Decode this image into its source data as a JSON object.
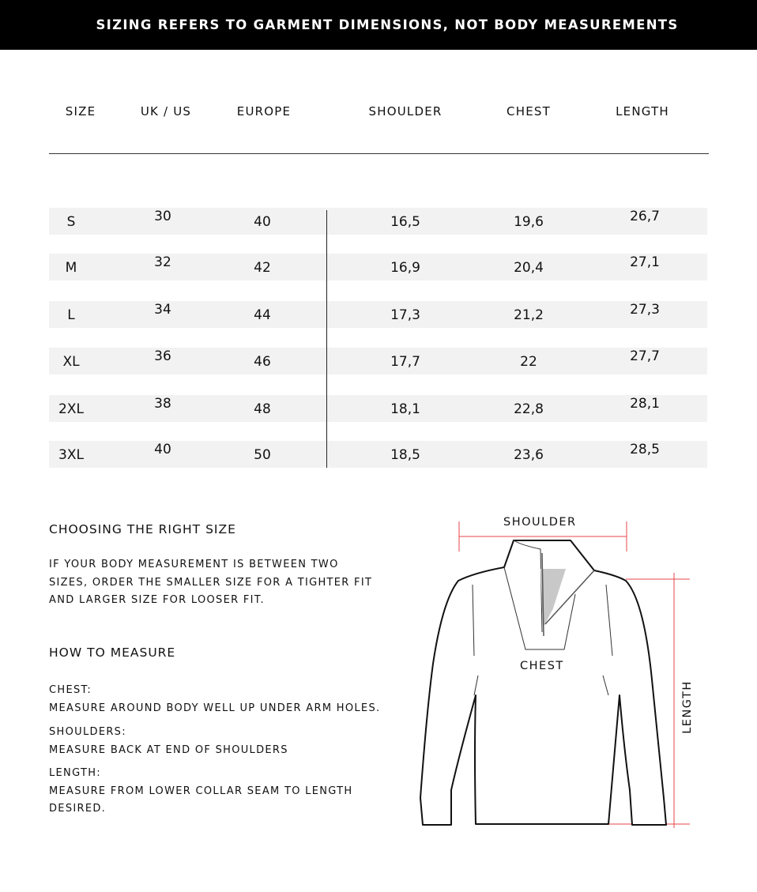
{
  "banner": "SIZING REFERS TO GARMENT DIMENSIONS, NOT BODY MEASUREMENTS",
  "table": {
    "headers": [
      "SIZE",
      "UK / US",
      "EUROPE",
      "SHOULDER",
      "CHEST",
      "LENGTH"
    ],
    "rows": [
      [
        "S",
        "30",
        "40",
        "16,5",
        "19,6",
        "26,7"
      ],
      [
        "M",
        "32",
        "42",
        "16,9",
        "20,4",
        "27,1"
      ],
      [
        "L",
        "34",
        "44",
        "17,3",
        "21,2",
        "27,3"
      ],
      [
        "XL",
        "36",
        "46",
        "17,7",
        "22",
        "27,7"
      ],
      [
        "2XL",
        "38",
        "48",
        "18,1",
        "22,8",
        "28,1"
      ],
      [
        "3XL",
        "40",
        "50",
        "18,5",
        "23,6",
        "28,5"
      ]
    ]
  },
  "choosing": {
    "title": "CHOOSING THE RIGHT SIZE",
    "lines": [
      "IF YOUR BODY MEASUREMENT IS BETWEEN TWO",
      "SIZES, ORDER THE SMALLER SIZE FOR A TIGHTER FIT",
      "AND LARGER SIZE FOR LOOSER FIT."
    ]
  },
  "measure": {
    "title": "HOW TO MEASURE",
    "items": [
      {
        "label": "CHEST:",
        "lines": [
          "MEASURE AROUND BODY WELL UP UNDER ARM HOLES."
        ]
      },
      {
        "label": "SHOULDERS:",
        "lines": [
          "MEASURE BACK AT END OF SHOULDERS"
        ]
      },
      {
        "label": "LENGTH:",
        "lines": [
          "MEASURE FROM LOWER COLLAR SEAM TO LENGTH",
          "DESIRED."
        ]
      }
    ]
  },
  "diagram": {
    "shoulder": "SHOULDER",
    "chest": "CHEST",
    "length": "LENGTH",
    "measure_color": "#e8454a"
  }
}
